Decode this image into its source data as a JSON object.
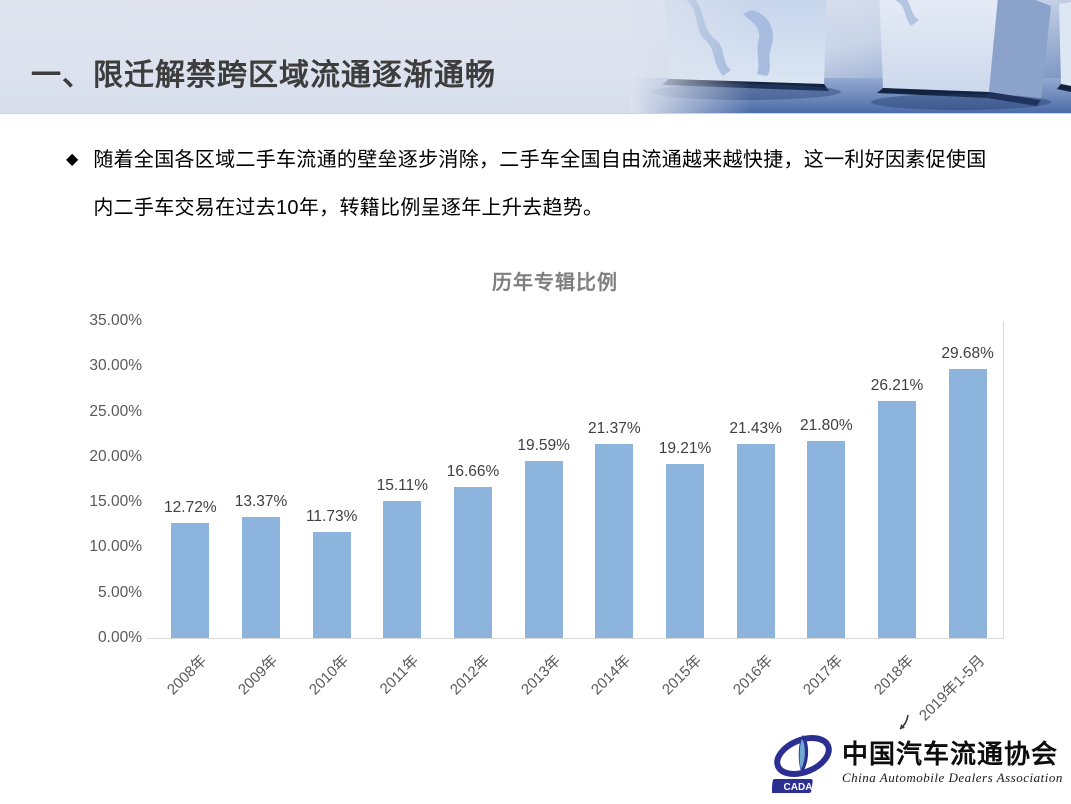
{
  "header": {
    "title": "一、限迁解禁跨区域流通逐渐通畅"
  },
  "bullet": {
    "marker": "◆",
    "text": "随着全国各区域二手车流通的壁垒逐步消除，二手车全国自由流通越来越快捷，这一利好因素促使国内二手车交易在过去10年，转籍比例呈逐年上升去趋势。"
  },
  "chart_data": {
    "type": "bar",
    "title": "历年专辑比例",
    "categories": [
      "2008年",
      "2009年",
      "2010年",
      "2011年",
      "2012年",
      "2013年",
      "2014年",
      "2015年",
      "2016年",
      "2017年",
      "2018年",
      "2019年1-5月"
    ],
    "values": [
      12.72,
      13.37,
      11.73,
      15.11,
      16.66,
      19.59,
      21.37,
      19.21,
      21.43,
      21.8,
      26.21,
      29.68
    ],
    "value_labels": [
      "12.72%",
      "13.37%",
      "11.73%",
      "15.11%",
      "16.66%",
      "19.59%",
      "21.37%",
      "19.21%",
      "21.43%",
      "21.80%",
      "26.21%",
      "29.68%"
    ],
    "yticks": [
      "35.00%",
      "30.00%",
      "25.00%",
      "20.00%",
      "15.00%",
      "10.00%",
      "5.00%",
      "0.00%"
    ],
    "ylim": [
      0,
      35
    ],
    "xlabel": "",
    "ylabel": "",
    "grid": false,
    "legend": false,
    "bar_color": "#8db4dc",
    "axis_color": "#d9d9d9"
  },
  "logo": {
    "cada_acronym": "CADA",
    "name_zh": "中国汽车流通协会",
    "name_en": "China Automobile Dealers Association"
  }
}
